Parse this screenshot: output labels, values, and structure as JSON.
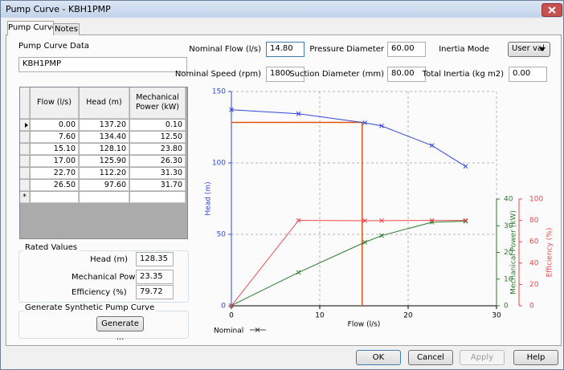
{
  "window": {
    "title": "Pump Curve - KBH1PMP"
  },
  "tabs": [
    "Pump Curve",
    "Notes"
  ],
  "pump_curve_data": {
    "label": "Pump Curve Data",
    "name": "KBH1PMP"
  },
  "table": {
    "headers": [
      "Flow (l/s)",
      "Head (m)",
      "Mechanical Power (kW)"
    ],
    "rows": [
      [
        "0.00",
        "137.20",
        "0.10"
      ],
      [
        "7.60",
        "134.40",
        "12.50"
      ],
      [
        "15.10",
        "128.10",
        "23.80"
      ],
      [
        "17.00",
        "125.90",
        "26.30"
      ],
      [
        "22.70",
        "112.20",
        "31.30"
      ],
      [
        "26.50",
        "97.60",
        "31.70"
      ]
    ],
    "new_row_marker": "*"
  },
  "rated_values": {
    "title": "Rated Values",
    "fields": [
      {
        "label": "Head (m)",
        "value": "128.35"
      },
      {
        "label": "Mechanical Power",
        "value": "23.35"
      },
      {
        "label": "Efficiency (%)",
        "value": "79.72"
      }
    ]
  },
  "synthetic": {
    "title": "Generate Synthetic Pump Curve",
    "button": "Generate ..."
  },
  "fields": [
    {
      "label": "Nominal Flow (l/s)",
      "value": "14.80"
    },
    {
      "label": "Nominal Speed (rpm)",
      "value": "1800"
    },
    {
      "label": "Pressure Diameter",
      "value": "60.00"
    },
    {
      "label": "Suction Diameter (mm)",
      "value": "80.00"
    },
    {
      "label": "Inertia Mode",
      "value": "User val"
    },
    {
      "label": "Total Inertia (kg m2)",
      "value": "0.00"
    }
  ],
  "buttons": [
    "OK",
    "Cancel",
    "Apply",
    "Help"
  ],
  "chart_data": {
    "type": "line",
    "x_label": "Flow (l/s)",
    "y_label": "Head (m)",
    "y2_label": "Mechanical Power (kW)",
    "y3_label": "Efficiency (%)",
    "x": [
      0,
      7.6,
      15.1,
      17,
      22.7,
      26.5
    ],
    "series": [
      {
        "name": "Head (m)",
        "color": "#3347d6",
        "axis": "y",
        "values": [
          137.2,
          134.4,
          128.1,
          125.9,
          112.2,
          97.6
        ]
      },
      {
        "name": "Mechanical Power (kW)",
        "color": "#2e7a2e",
        "axis": "y2",
        "values": [
          0.1,
          12.5,
          23.8,
          26.3,
          31.3,
          31.7
        ]
      },
      {
        "name": "Efficiency (%)",
        "color": "#e8474a",
        "axis": "y3",
        "values": [
          0,
          80,
          79.7,
          79.8,
          80,
          80
        ]
      }
    ],
    "nominal": {
      "name": "Nominal",
      "x": 14.8,
      "y": 128.35,
      "color": "#e2530d"
    },
    "xlim": [
      0,
      30
    ],
    "xticks": [
      0,
      10,
      20,
      30
    ],
    "ylim": [
      0,
      150
    ],
    "yticks": [
      0,
      50,
      100,
      150
    ],
    "y2lim": [
      0,
      40
    ],
    "y2ticks": [
      0,
      10,
      20,
      30,
      40
    ],
    "y3lim": [
      0,
      100
    ],
    "y3ticks": [
      0,
      20,
      40,
      60,
      80,
      100
    ],
    "grid": true
  }
}
